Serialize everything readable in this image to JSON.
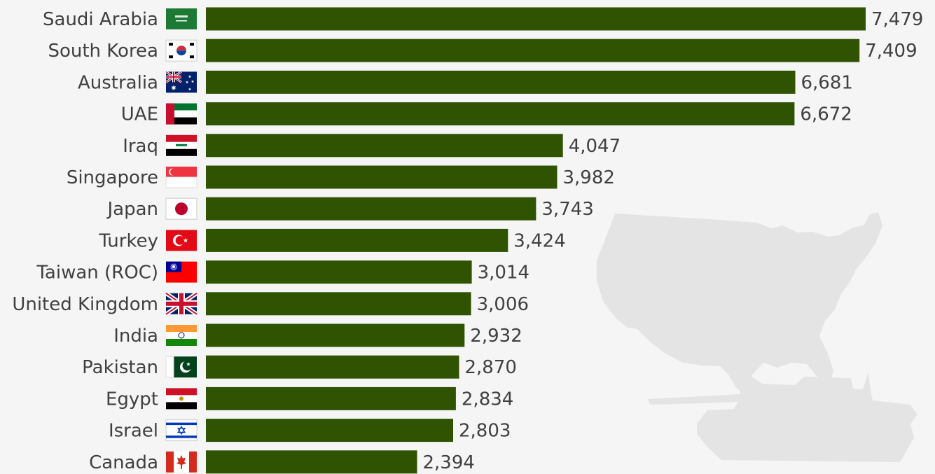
{
  "chart_data": {
    "type": "bar",
    "orientation": "horizontal",
    "categories": [
      "Saudi Arabia",
      "South Korea",
      "Australia",
      "UAE",
      "Iraq",
      "Singapore",
      "Japan",
      "Turkey",
      "Taiwan (ROC)",
      "United Kingdom",
      "India",
      "Pakistan",
      "Egypt",
      "Israel",
      "Canada"
    ],
    "values": [
      7479,
      7409,
      6681,
      6672,
      4047,
      3982,
      3743,
      3424,
      3014,
      3006,
      2932,
      2870,
      2834,
      2803,
      2394
    ],
    "value_labels": [
      "7,479",
      "7,409",
      "6,681",
      "6,672",
      "4,047",
      "3,982",
      "3,743",
      "3,424",
      "3,014",
      "3,006",
      "2,932",
      "2,870",
      "2,834",
      "2,803",
      "2,394"
    ],
    "flag_icons": [
      "saudi-arabia-flag-icon",
      "south-korea-flag-icon",
      "australia-flag-icon",
      "uae-flag-icon",
      "iraq-flag-icon",
      "singapore-flag-icon",
      "japan-flag-icon",
      "turkey-flag-icon",
      "taiwan-flag-icon",
      "united-kingdom-flag-icon",
      "india-flag-icon",
      "pakistan-flag-icon",
      "egypt-flag-icon",
      "israel-flag-icon",
      "canada-flag-icon"
    ],
    "background_icons": [
      "usa-map-icon",
      "tank-icon"
    ],
    "title": "",
    "xlabel": "",
    "ylabel": "",
    "xlim": [
      0,
      7479
    ],
    "grid": false,
    "colors": {
      "bar": "#2f5300",
      "text": "#404040",
      "background": "#f5f5f5",
      "silhouette": "#e4e4e4"
    }
  }
}
